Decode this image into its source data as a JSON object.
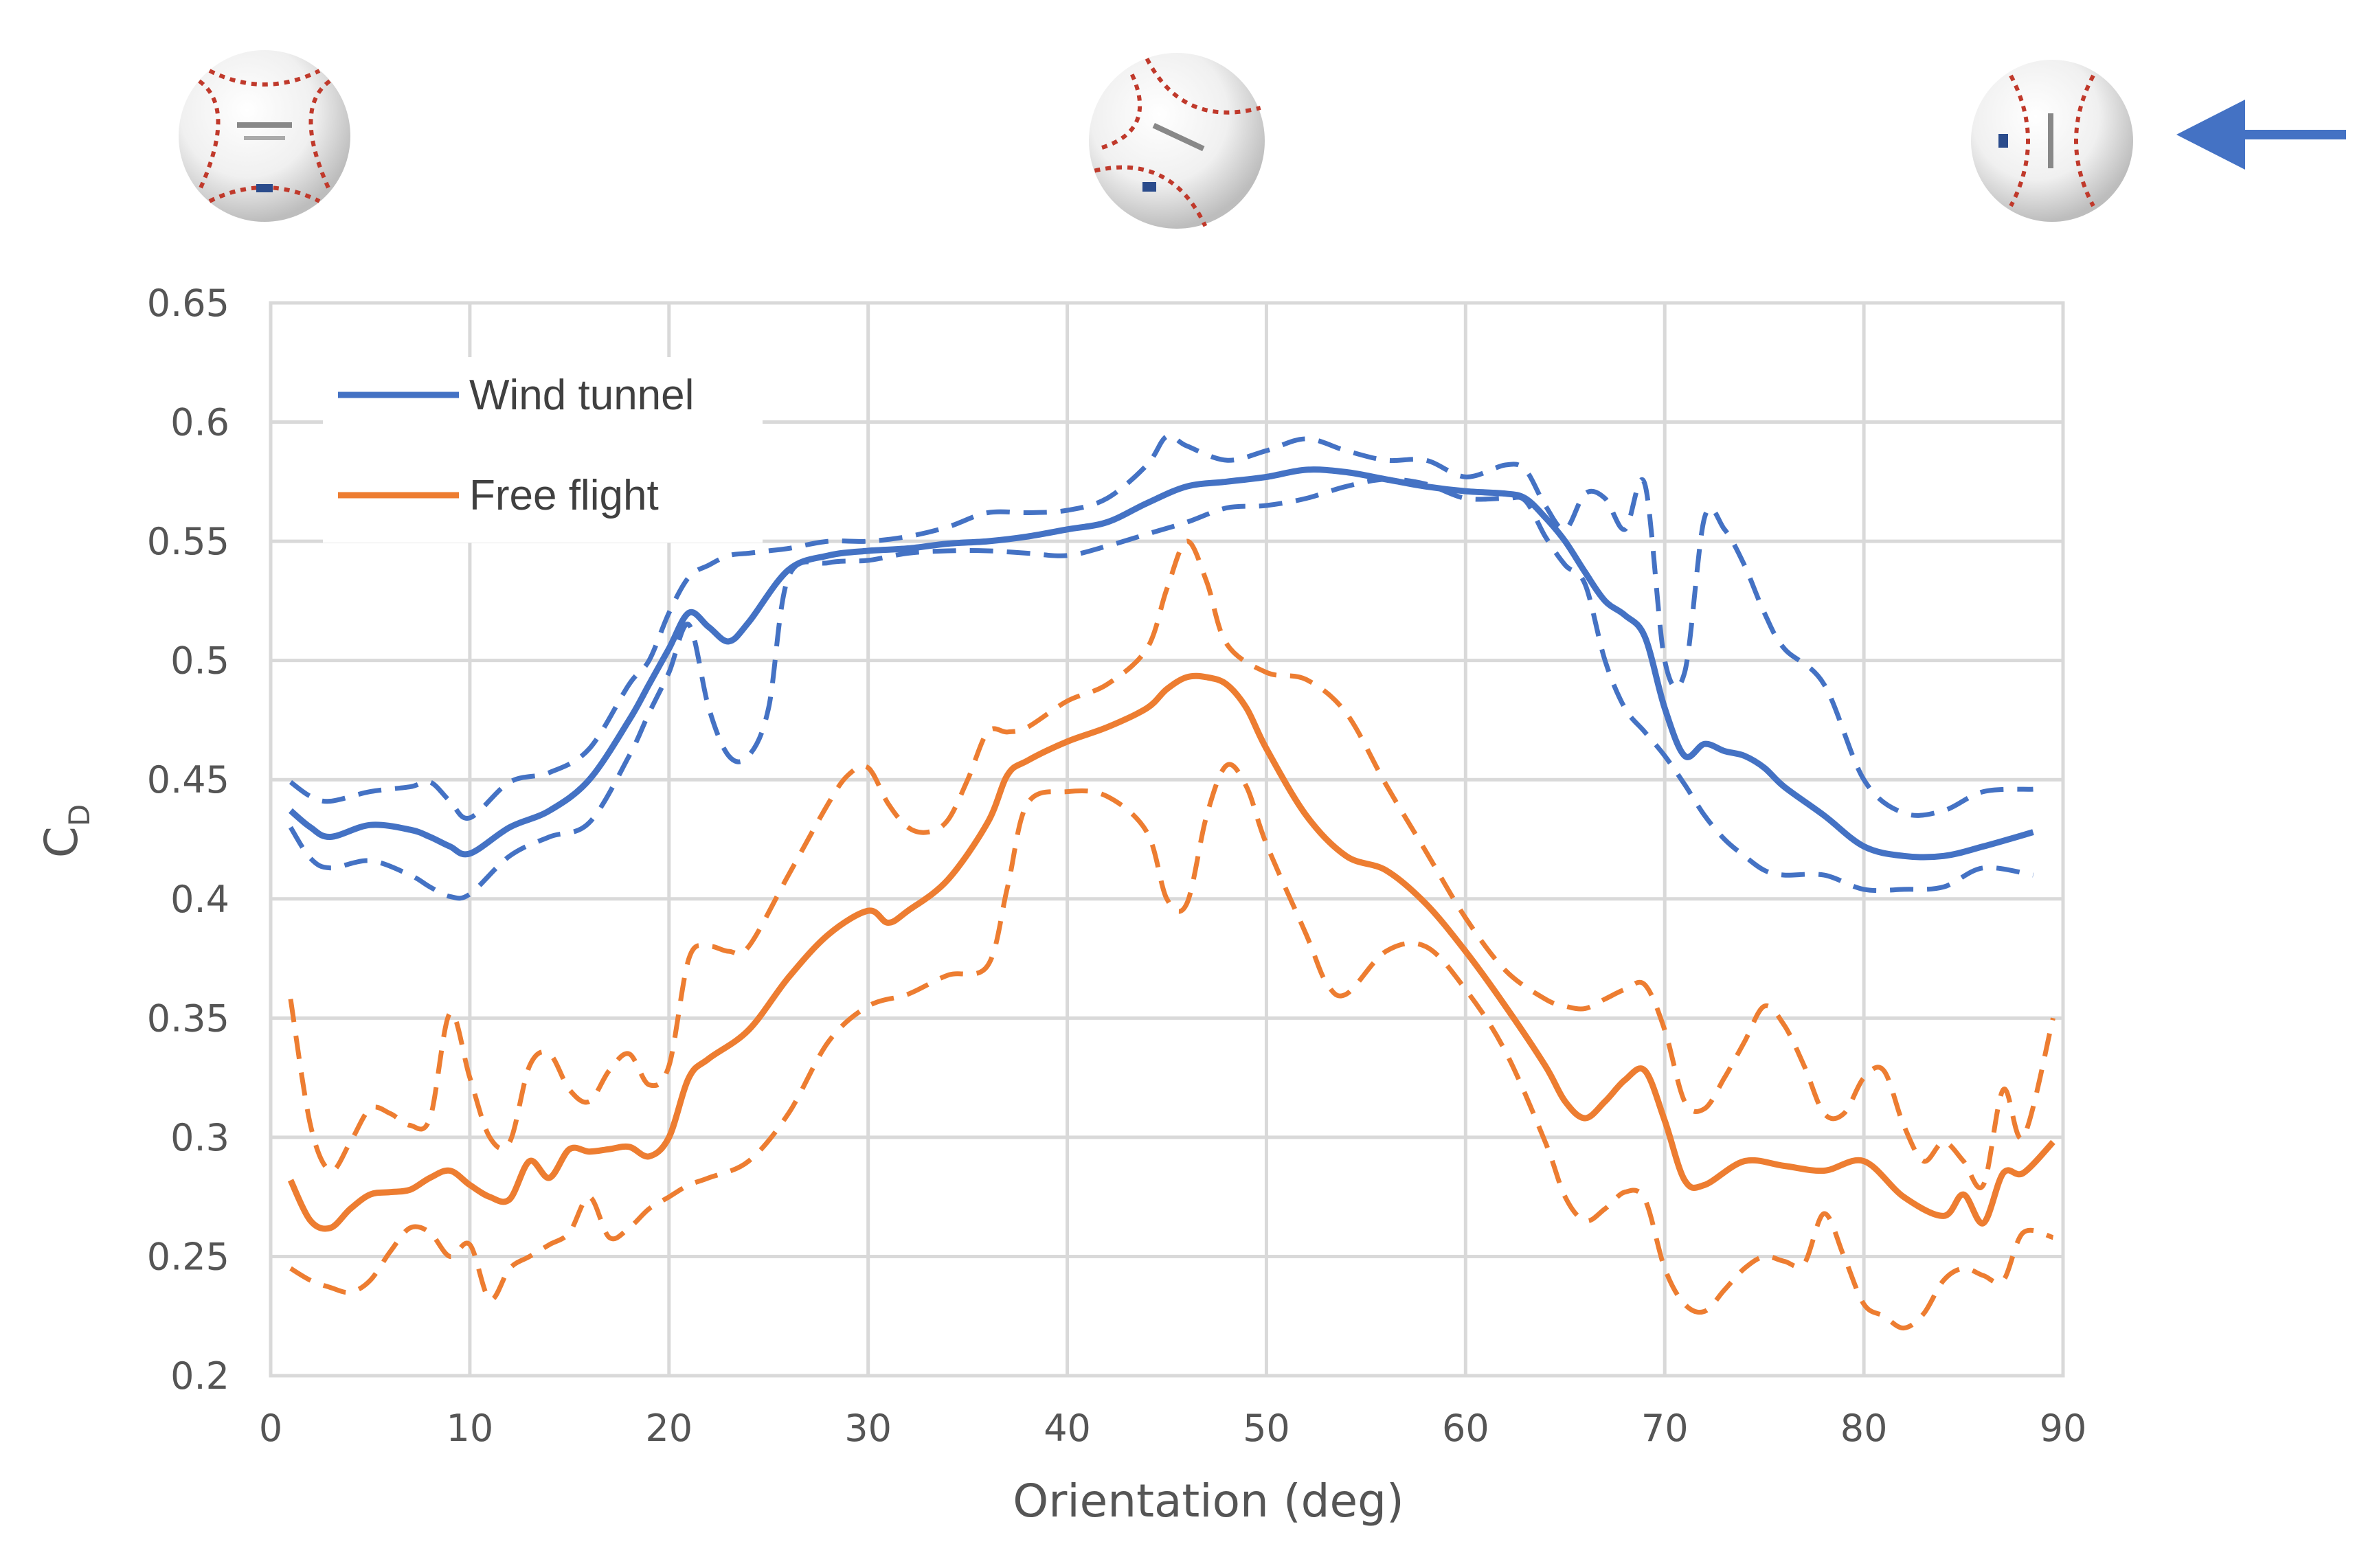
{
  "chart_data": {
    "type": "line",
    "xlabel": "Orientation (deg)",
    "ylabel": "C",
    "ylabel_subscript": "D",
    "xlim": [
      0,
      90
    ],
    "ylim": [
      0.2,
      0.65
    ],
    "x_ticks": [
      "0",
      "10",
      "20",
      "30",
      "40",
      "50",
      "60",
      "70",
      "80",
      "90"
    ],
    "y_ticks": [
      "0.2",
      "0.25",
      "0.3",
      "0.35",
      "0.4",
      "0.45",
      "0.5",
      "0.55",
      "0.6",
      "0.65"
    ],
    "grid": true,
    "legend_position": "top-left",
    "legend": [
      "Wind tunnel",
      "Free flight"
    ],
    "series": [
      {
        "name": "Wind tunnel",
        "color": "#4472c4",
        "style": "solid",
        "x": [
          1,
          2,
          3,
          5,
          7,
          8,
          9,
          10,
          12,
          14,
          16,
          18,
          19,
          20,
          21,
          22,
          23,
          24,
          26,
          28,
          30,
          32,
          34,
          36,
          38,
          40,
          42,
          44,
          46,
          48,
          50,
          52,
          54,
          56,
          58,
          60,
          62,
          63,
          64,
          65,
          66,
          67,
          68,
          69,
          70,
          71,
          72,
          73,
          74,
          75,
          76,
          78,
          80,
          82,
          84,
          86,
          88.5
        ],
        "y": [
          0.437,
          0.43,
          0.426,
          0.431,
          0.429,
          0.426,
          0.422,
          0.419,
          0.43,
          0.437,
          0.45,
          0.475,
          0.49,
          0.505,
          0.52,
          0.514,
          0.508,
          0.516,
          0.538,
          0.544,
          0.546,
          0.547,
          0.549,
          0.55,
          0.552,
          0.555,
          0.558,
          0.566,
          0.573,
          0.575,
          0.577,
          0.58,
          0.579,
          0.576,
          0.573,
          0.571,
          0.57,
          0.568,
          0.56,
          0.55,
          0.537,
          0.525,
          0.519,
          0.51,
          0.48,
          0.46,
          0.465,
          0.462,
          0.46,
          0.455,
          0.447,
          0.435,
          0.422,
          0.418,
          0.418,
          0.422,
          0.428
        ]
      },
      {
        "name": "Wind tunnel upper bound",
        "color": "#4472c4",
        "style": "dashed",
        "x": [
          1,
          2,
          3,
          5,
          7,
          8,
          9,
          10,
          12,
          14,
          16,
          18,
          19,
          20,
          21,
          22,
          23,
          24,
          25,
          26,
          28,
          30,
          32,
          34,
          36,
          38,
          40,
          42,
          44,
          45,
          46,
          48,
          50,
          52,
          54,
          56,
          58,
          60,
          62,
          63,
          64,
          65,
          66,
          67,
          68,
          69,
          70,
          71,
          72,
          73,
          74,
          75,
          76,
          78,
          80,
          82,
          84,
          86,
          88.5
        ],
        "y": [
          0.449,
          0.443,
          0.441,
          0.445,
          0.447,
          0.449,
          0.441,
          0.434,
          0.449,
          0.453,
          0.463,
          0.49,
          0.5,
          0.52,
          0.535,
          0.54,
          0.544,
          0.545,
          0.546,
          0.547,
          0.55,
          0.55,
          0.552,
          0.556,
          0.562,
          0.562,
          0.563,
          0.568,
          0.582,
          0.594,
          0.59,
          0.584,
          0.588,
          0.593,
          0.588,
          0.584,
          0.584,
          0.577,
          0.582,
          0.58,
          0.565,
          0.555,
          0.57,
          0.568,
          0.555,
          0.574,
          0.5,
          0.495,
          0.56,
          0.555,
          0.54,
          0.52,
          0.505,
          0.49,
          0.45,
          0.436,
          0.437,
          0.445,
          0.446
        ]
      },
      {
        "name": "Wind tunnel lower bound",
        "color": "#4472c4",
        "style": "dashed",
        "x": [
          1,
          2,
          3,
          5,
          7,
          8,
          9,
          10,
          12,
          14,
          16,
          18,
          19,
          20,
          21,
          22,
          23,
          24,
          25,
          26,
          28,
          30,
          32,
          34,
          36,
          38,
          40,
          42,
          44,
          46,
          48,
          50,
          52,
          54,
          56,
          58,
          60,
          62,
          63,
          64,
          65,
          66,
          67,
          68,
          69,
          70,
          71,
          72,
          73,
          74,
          75,
          76,
          78,
          80,
          82,
          84,
          86,
          88.5
        ],
        "y": [
          0.43,
          0.417,
          0.413,
          0.416,
          0.41,
          0.405,
          0.401,
          0.402,
          0.418,
          0.426,
          0.432,
          0.46,
          0.478,
          0.495,
          0.515,
          0.48,
          0.46,
          0.46,
          0.48,
          0.535,
          0.541,
          0.542,
          0.545,
          0.546,
          0.546,
          0.545,
          0.544,
          0.548,
          0.553,
          0.558,
          0.564,
          0.565,
          0.568,
          0.573,
          0.576,
          0.574,
          0.568,
          0.568,
          0.567,
          0.552,
          0.54,
          0.532,
          0.5,
          0.48,
          0.47,
          0.46,
          0.448,
          0.435,
          0.425,
          0.418,
          0.412,
          0.41,
          0.41,
          0.404,
          0.404,
          0.405,
          0.413,
          0.41
        ]
      },
      {
        "name": "Free flight",
        "color": "#ed7d31",
        "style": "solid",
        "x": [
          1,
          2,
          3,
          4,
          5,
          6,
          7,
          8,
          9,
          10,
          11,
          12,
          13,
          14,
          15,
          16,
          17,
          18,
          19,
          20,
          21,
          22,
          24,
          26,
          28,
          30,
          31,
          32,
          34,
          36,
          37,
          38,
          40,
          42,
          44,
          45,
          46,
          47,
          48,
          49,
          50,
          52,
          54,
          56,
          58,
          60,
          62,
          64,
          65,
          66,
          67,
          68,
          69,
          70,
          71,
          72,
          74,
          76,
          78,
          80,
          82,
          84,
          85,
          86,
          87,
          88,
          89.5
        ],
        "y": [
          0.282,
          0.265,
          0.262,
          0.27,
          0.276,
          0.277,
          0.278,
          0.283,
          0.286,
          0.28,
          0.275,
          0.274,
          0.29,
          0.283,
          0.295,
          0.294,
          0.295,
          0.296,
          0.292,
          0.3,
          0.325,
          0.333,
          0.345,
          0.367,
          0.385,
          0.395,
          0.39,
          0.395,
          0.408,
          0.432,
          0.452,
          0.458,
          0.466,
          0.472,
          0.48,
          0.488,
          0.493,
          0.493,
          0.49,
          0.48,
          0.463,
          0.435,
          0.418,
          0.412,
          0.398,
          0.378,
          0.355,
          0.33,
          0.315,
          0.308,
          0.315,
          0.324,
          0.328,
          0.307,
          0.282,
          0.28,
          0.29,
          0.288,
          0.286,
          0.29,
          0.275,
          0.267,
          0.276,
          0.264,
          0.285,
          0.285,
          0.298
        ]
      },
      {
        "name": "Free flight upper bound",
        "color": "#ed7d31",
        "style": "dashed",
        "x": [
          1,
          2,
          3,
          4,
          5,
          6,
          7,
          8,
          9,
          10,
          11,
          12,
          13,
          14,
          15,
          16,
          17,
          18,
          19,
          20,
          21,
          22,
          23,
          24,
          26,
          28,
          29,
          30,
          31,
          32,
          33,
          34,
          35,
          36,
          37,
          38,
          40,
          42,
          44,
          45,
          46,
          47,
          48,
          50,
          52,
          54,
          56,
          58,
          60,
          62,
          64,
          65,
          66,
          67,
          68,
          69,
          70,
          71,
          72,
          73,
          74,
          75,
          76,
          77,
          78,
          79,
          80,
          81,
          82,
          83,
          84,
          85,
          86,
          87,
          88,
          89.5
        ],
        "y": [
          0.358,
          0.305,
          0.286,
          0.298,
          0.312,
          0.31,
          0.305,
          0.308,
          0.352,
          0.325,
          0.3,
          0.298,
          0.33,
          0.335,
          0.32,
          0.315,
          0.328,
          0.335,
          0.322,
          0.33,
          0.375,
          0.38,
          0.378,
          0.38,
          0.41,
          0.44,
          0.452,
          0.455,
          0.44,
          0.43,
          0.428,
          0.433,
          0.45,
          0.47,
          0.47,
          0.472,
          0.483,
          0.49,
          0.505,
          0.53,
          0.55,
          0.533,
          0.507,
          0.495,
          0.492,
          0.478,
          0.448,
          0.42,
          0.392,
          0.37,
          0.358,
          0.355,
          0.354,
          0.358,
          0.362,
          0.364,
          0.345,
          0.315,
          0.312,
          0.325,
          0.34,
          0.355,
          0.347,
          0.33,
          0.31,
          0.31,
          0.325,
          0.328,
          0.305,
          0.29,
          0.298,
          0.29,
          0.28,
          0.32,
          0.3,
          0.35
        ]
      },
      {
        "name": "Free flight lower bound",
        "color": "#ed7d31",
        "style": "dashed",
        "x": [
          1,
          2,
          3,
          4,
          5,
          6,
          7,
          8,
          9,
          10,
          11,
          12,
          13,
          14,
          15,
          16,
          17,
          18,
          19,
          20,
          21,
          22,
          24,
          26,
          28,
          30,
          32,
          34,
          36,
          37,
          38,
          40,
          42,
          44,
          45,
          46,
          47,
          48,
          49,
          50,
          52,
          53,
          54,
          56,
          58,
          60,
          62,
          64,
          65,
          66,
          67,
          68,
          69,
          70,
          71,
          72,
          73,
          74,
          75,
          76,
          77,
          78,
          79,
          80,
          81,
          82,
          83,
          84,
          85,
          86,
          87,
          88,
          89.5
        ],
        "y": [
          0.245,
          0.24,
          0.237,
          0.235,
          0.24,
          0.252,
          0.262,
          0.26,
          0.25,
          0.255,
          0.232,
          0.245,
          0.25,
          0.255,
          0.26,
          0.275,
          0.258,
          0.262,
          0.27,
          0.275,
          0.28,
          0.283,
          0.29,
          0.31,
          0.34,
          0.355,
          0.36,
          0.368,
          0.372,
          0.405,
          0.44,
          0.445,
          0.443,
          0.428,
          0.4,
          0.398,
          0.435,
          0.456,
          0.447,
          0.423,
          0.385,
          0.365,
          0.36,
          0.378,
          0.38,
          0.362,
          0.336,
          0.298,
          0.275,
          0.265,
          0.27,
          0.277,
          0.274,
          0.245,
          0.23,
          0.227,
          0.236,
          0.245,
          0.25,
          0.248,
          0.247,
          0.268,
          0.25,
          0.23,
          0.225,
          0.22,
          0.226,
          0.24,
          0.245,
          0.242,
          0.24,
          0.26,
          0.258
        ]
      }
    ]
  },
  "images": {
    "top_left": "baseball",
    "top_center": "baseball",
    "top_right": "baseball",
    "arrow_icon": "left-arrow-icon",
    "arrow_color": "#4472c4"
  }
}
